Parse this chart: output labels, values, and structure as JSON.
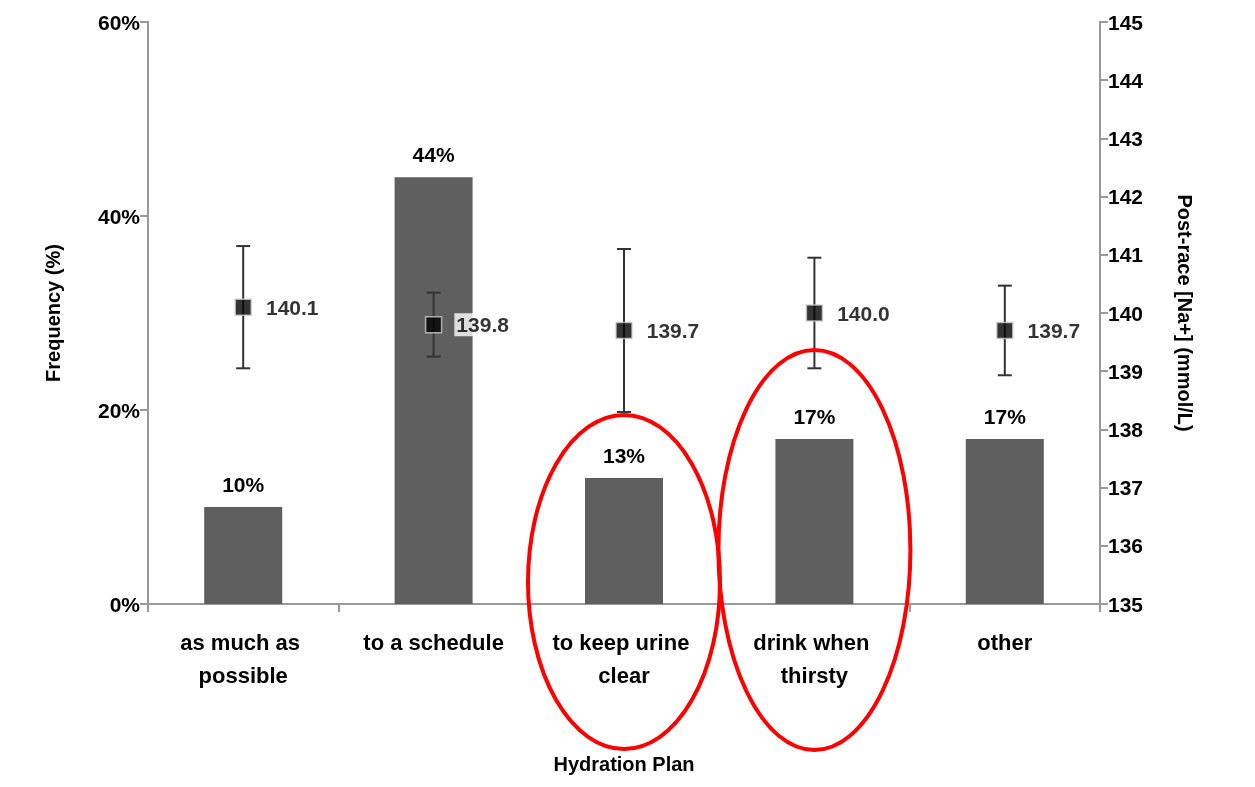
{
  "chart_data": {
    "type": "bar",
    "xlabel": "Hydration Plan",
    "ylabel": "Frequency (%)",
    "y2label": "Post-race [Na+] (mmol/L)",
    "categories": [
      "as much as possible",
      "to a schedule",
      "to keep urine clear",
      "drink when thirsty",
      "other"
    ],
    "series": [
      {
        "color": "#5f5f5f",
        "values": [
          10,
          44,
          13,
          17,
          17
        ],
        "value_labels": [
          "10%",
          "44%",
          "13%",
          "17%",
          "17%"
        ]
      },
      {
        "type": "scatter",
        "axis": "y2",
        "color": "#000000",
        "values": [
          140.1,
          139.8,
          139.7,
          140.0,
          139.7
        ],
        "errors": [
          1.05,
          0.55,
          1.4,
          0.95,
          0.77
        ],
        "value_labels": [
          "140.1",
          "139.8",
          "139.7",
          "140.0",
          "139.7"
        ]
      }
    ],
    "ylim": [
      0,
      60
    ],
    "yticks": [
      {
        "value": 0,
        "label": "0%"
      },
      {
        "value": 20,
        "label": "20%"
      },
      {
        "value": 40,
        "label": "40%"
      },
      {
        "value": 60,
        "label": "60%"
      }
    ],
    "y2lim": [
      135,
      145
    ],
    "y2ticks": [
      135,
      136,
      137,
      138,
      139,
      140,
      141,
      142,
      143,
      144,
      145
    ],
    "marker": "square",
    "grid": false
  }
}
